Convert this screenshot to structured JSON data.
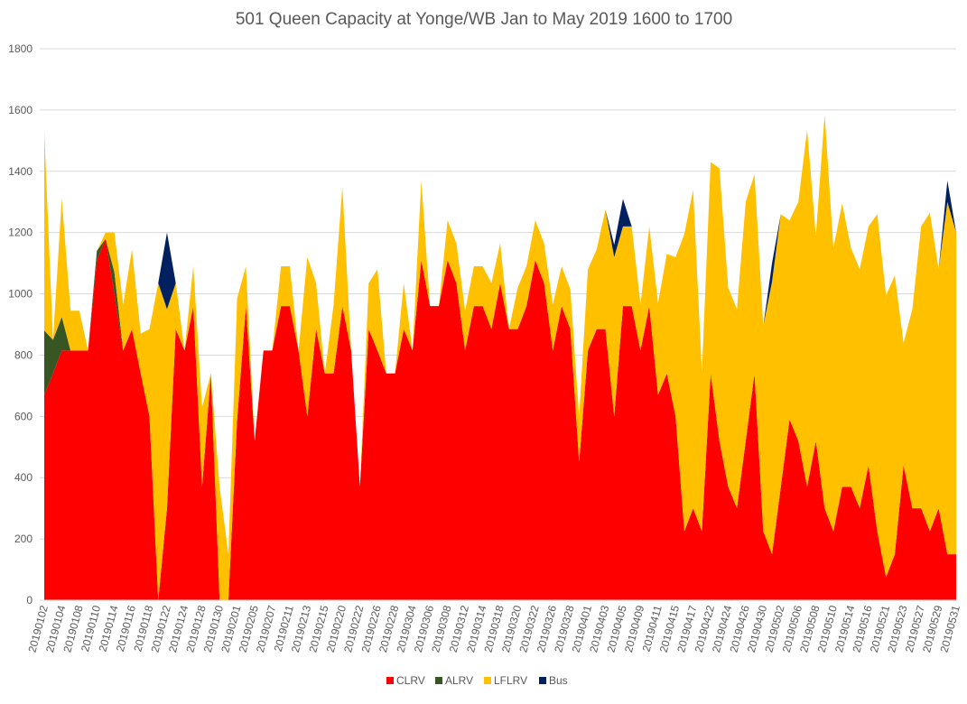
{
  "chart_data": {
    "type": "area",
    "stacked": true,
    "title": "501 Queen Capacity at Yonge/WB Jan to May 2019 1600 to 1700",
    "xlabel": "",
    "ylabel": "",
    "ylim": [
      0,
      1800
    ],
    "yticks": [
      0,
      200,
      400,
      600,
      800,
      1000,
      1200,
      1400,
      1600,
      1800
    ],
    "grid": true,
    "legend_position": "bottom",
    "colors": {
      "CLRV": "#ff0000",
      "ALRV": "#375623",
      "LFLRV": "#ffc000",
      "Bus": "#002060"
    },
    "x": [
      "20190102",
      "20190103",
      "20190104",
      "20190107",
      "20190108",
      "20190109",
      "20190110",
      "20190111",
      "20190114",
      "20190115",
      "20190116",
      "20190117",
      "20190118",
      "20190121",
      "20190122",
      "20190123",
      "20190124",
      "20190125",
      "20190128",
      "20190129",
      "20190130",
      "20190131",
      "20190201",
      "20190204",
      "20190205",
      "20190206",
      "20190207",
      "20190208",
      "20190211",
      "20190212",
      "20190213",
      "20190214",
      "20190215",
      "20190219",
      "20190220",
      "20190221",
      "20190222",
      "20190225",
      "20190226",
      "20190227",
      "20190228",
      "20190301",
      "20190304",
      "20190305",
      "20190306",
      "20190307",
      "20190308",
      "20190311",
      "20190312",
      "20190313",
      "20190314",
      "20190315",
      "20190318",
      "20190319",
      "20190320",
      "20190321",
      "20190322",
      "20190325",
      "20190326",
      "20190327",
      "20190328",
      "20190329",
      "20190401",
      "20190402",
      "20190403",
      "20190404",
      "20190405",
      "20190408",
      "20190409",
      "20190410",
      "20190411",
      "20190412",
      "20190415",
      "20190416",
      "20190417",
      "20190418",
      "20190422",
      "20190423",
      "20190424",
      "20190425",
      "20190426",
      "20190429",
      "20190430",
      "20190501",
      "20190502",
      "20190503",
      "20190506",
      "20190507",
      "20190508",
      "20190509",
      "20190510",
      "20190513",
      "20190514",
      "20190515",
      "20190516",
      "20190517",
      "20190521",
      "20190522",
      "20190523",
      "20190524",
      "20190527",
      "20190528",
      "20190529",
      "20190530",
      "20190531"
    ],
    "x_tick_labels": [
      "20190102",
      "20190104",
      "20190108",
      "20190110",
      "20190114",
      "20190116",
      "20190118",
      "20190122",
      "20190124",
      "20190128",
      "20190130",
      "20190201",
      "20190205",
      "20190207",
      "20190211",
      "20190213",
      "20190215",
      "20190220",
      "20190222",
      "20190226",
      "20190228",
      "20190304",
      "20190306",
      "20190308",
      "20190312",
      "20190314",
      "20190318",
      "20190320",
      "20190322",
      "20190326",
      "20190328",
      "20190401",
      "20190403",
      "20190405",
      "20190409",
      "20190411",
      "20190415",
      "20190417",
      "20190422",
      "20190424",
      "20190426",
      "20190430",
      "20190502",
      "20190506",
      "20190508",
      "20190510",
      "20190514",
      "20190516",
      "20190521",
      "20190523",
      "20190527",
      "20190529",
      "20190531"
    ],
    "series": [
      {
        "name": "CLRV",
        "values": [
          670,
          740,
          815,
          815,
          815,
          815,
          1110,
          1180,
          1000,
          815,
          885,
          740,
          600,
          0,
          300,
          885,
          815,
          960,
          370,
          740,
          0,
          0,
          590,
          960,
          520,
          815,
          815,
          960,
          960,
          815,
          600,
          885,
          740,
          740,
          960,
          815,
          370,
          885,
          815,
          740,
          740,
          885,
          815,
          1110,
          960,
          960,
          1110,
          1035,
          815,
          960,
          960,
          885,
          1035,
          885,
          885,
          960,
          1110,
          1035,
          815,
          960,
          885,
          450,
          815,
          885,
          885,
          600,
          960,
          960,
          815,
          960,
          670,
          740,
          600,
          225,
          300,
          225,
          740,
          520,
          370,
          300,
          520,
          740,
          225,
          150,
          370,
          590,
          520,
          370,
          520,
          300,
          225,
          370,
          370,
          300,
          440,
          225,
          75,
          150,
          440,
          300,
          300,
          225,
          300,
          150,
          150
        ]
      },
      {
        "name": "ALRV",
        "values": [
          210,
          110,
          110,
          0,
          0,
          0,
          30,
          0,
          70,
          0,
          0,
          0,
          0,
          0,
          0,
          0,
          0,
          0,
          0,
          0,
          0,
          0,
          0,
          0,
          0,
          0,
          0,
          0,
          0,
          0,
          0,
          0,
          0,
          0,
          0,
          0,
          0,
          0,
          0,
          0,
          0,
          0,
          0,
          0,
          0,
          0,
          0,
          0,
          0,
          0,
          0,
          0,
          0,
          0,
          0,
          0,
          0,
          0,
          0,
          0,
          0,
          0,
          0,
          0,
          0,
          0,
          0,
          0,
          0,
          0,
          0,
          0,
          0,
          0,
          0,
          0,
          0,
          0,
          0,
          0,
          0,
          0,
          0,
          0,
          0,
          0,
          0,
          0,
          0,
          0,
          0,
          0,
          0,
          0,
          0,
          0,
          0,
          0,
          0,
          0,
          0,
          0,
          0,
          0,
          0
        ]
      },
      {
        "name": "LFLRV",
        "values": [
          650,
          0,
          385,
          130,
          130,
          0,
          0,
          20,
          130,
          150,
          260,
          130,
          285,
          1035,
          650,
          150,
          0,
          130,
          260,
          0,
          370,
          150,
          395,
          130,
          0,
          0,
          0,
          130,
          130,
          0,
          520,
          150,
          0,
          225,
          390,
          0,
          0,
          150,
          265,
          0,
          0,
          150,
          0,
          260,
          0,
          0,
          130,
          130,
          130,
          130,
          130,
          150,
          130,
          0,
          135,
          130,
          130,
          130,
          150,
          130,
          130,
          150,
          265,
          260,
          390,
          520,
          260,
          260,
          150,
          260,
          300,
          390,
          520,
          970,
          1040,
          520,
          690,
          890,
          650,
          650,
          780,
          650,
          670,
          890,
          890,
          650,
          780,
          1165,
          670,
          1285,
          925,
          925,
          780,
          780,
          780,
          1035,
          920,
          910,
          400,
          650,
          920,
          1040,
          780,
          1150,
          1050
        ]
      },
      {
        "name": "Bus",
        "values": [
          0,
          0,
          0,
          0,
          0,
          0,
          0,
          0,
          0,
          0,
          0,
          0,
          0,
          0,
          250,
          0,
          0,
          0,
          0,
          0,
          0,
          0,
          0,
          0,
          0,
          0,
          0,
          0,
          0,
          0,
          0,
          0,
          0,
          0,
          0,
          0,
          0,
          0,
          0,
          0,
          0,
          0,
          0,
          0,
          0,
          0,
          0,
          0,
          0,
          0,
          0,
          0,
          0,
          0,
          0,
          0,
          0,
          0,
          0,
          0,
          0,
          0,
          0,
          0,
          0,
          40,
          90,
          0,
          0,
          0,
          0,
          0,
          0,
          0,
          0,
          0,
          0,
          0,
          0,
          0,
          0,
          0,
          0,
          60,
          0,
          0,
          0,
          0,
          0,
          0,
          0,
          0,
          0,
          0,
          0,
          0,
          0,
          0,
          0,
          0,
          0,
          0,
          0,
          70,
          0
        ]
      }
    ]
  }
}
